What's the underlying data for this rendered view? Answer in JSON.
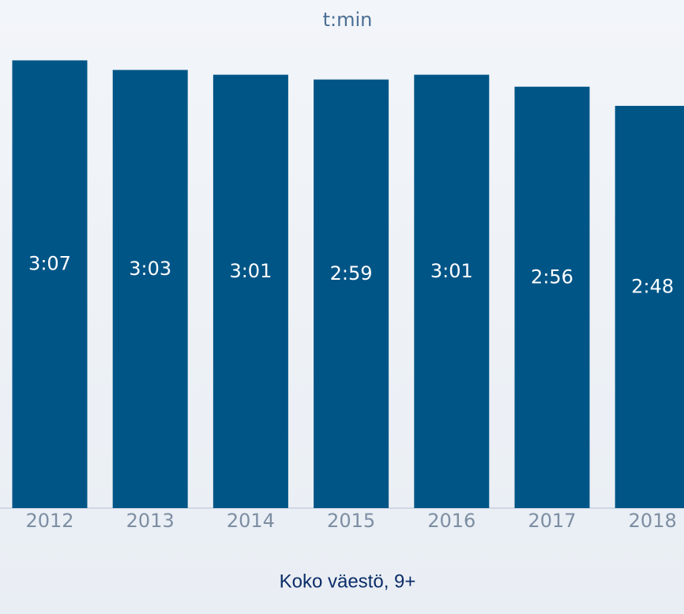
{
  "chart_data": {
    "type": "bar",
    "y_label": "t:min",
    "x_label": "Koko väestö, 9+",
    "categories": [
      "2012",
      "2013",
      "2014",
      "2015",
      "2016",
      "2017",
      "2018"
    ],
    "values": [
      187,
      183,
      181,
      179,
      181,
      176,
      168
    ],
    "value_labels": [
      "3:07",
      "3:03",
      "3:01",
      "2:59",
      "3:01",
      "2:56",
      "2:48"
    ],
    "color": "#005587",
    "ylim": [
      0,
      200
    ]
  }
}
